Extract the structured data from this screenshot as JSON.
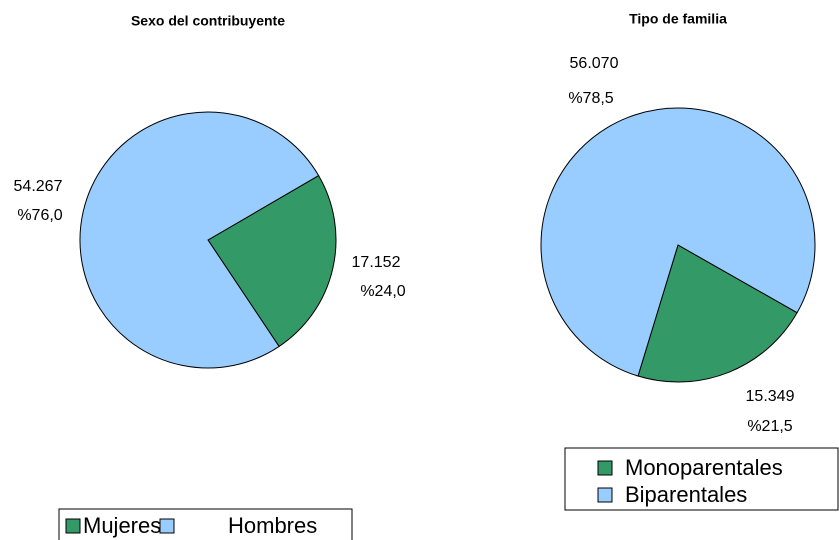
{
  "chart_data": [
    {
      "type": "pie",
      "title": "Sexo del contribuyente",
      "categories": [
        "Mujeres",
        "Hombres"
      ],
      "values": [
        17152,
        54267
      ],
      "value_labels": [
        "17.152",
        "54.267"
      ],
      "percents": [
        24.0,
        76.0
      ],
      "percent_labels": [
        "%24,0",
        "%76,0"
      ],
      "colors": [
        "#339966",
        "#99ccff"
      ],
      "legend": "bottom"
    },
    {
      "type": "pie",
      "title": "Tipo de familia",
      "categories": [
        "Monoparentales",
        "Biparentales"
      ],
      "values": [
        15349,
        56070
      ],
      "value_labels": [
        "15.349",
        "56.070"
      ],
      "percents": [
        21.5,
        78.5
      ],
      "percent_labels": [
        "%21,5",
        "%78,5"
      ],
      "colors": [
        "#339966",
        "#99ccff"
      ],
      "legend": "bottom right"
    }
  ]
}
